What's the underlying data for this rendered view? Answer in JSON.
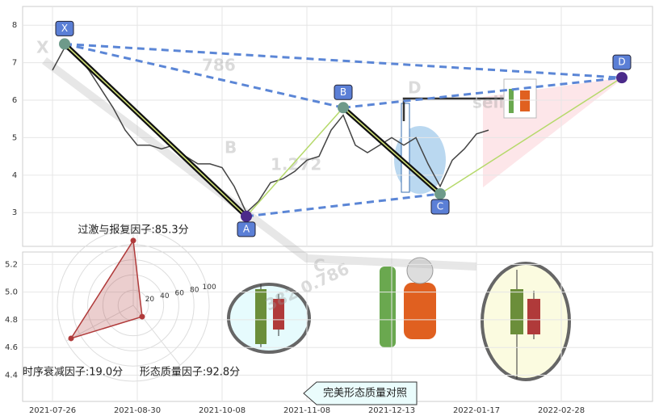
{
  "chart_data": [
    {
      "type": "line",
      "categories": [
        "2021-07-26",
        null,
        null,
        null,
        null,
        null,
        null,
        "2021-08-30",
        null,
        null,
        null,
        null,
        null,
        null,
        "2021-10-08",
        null,
        null,
        null,
        null,
        null,
        null,
        "2021-11-08",
        null,
        null,
        null,
        null,
        null,
        null,
        "2021-12-13",
        null,
        null,
        null,
        null,
        null,
        null,
        "2022-01-17",
        null,
        null,
        null,
        null,
        null,
        null,
        "2022-02-28",
        null,
        null,
        null,
        null,
        null,
        null,
        null
      ],
      "values": [
        6.8,
        7.4,
        7.2,
        6.8,
        6.3,
        5.8,
        5.2,
        4.8,
        4.8,
        4.7,
        4.8,
        4.5,
        4.3,
        4.3,
        4.2,
        3.7,
        3.0,
        3.3,
        3.8,
        3.9,
        4.1,
        4.4,
        4.5,
        5.2,
        5.6,
        4.8,
        4.6,
        4.8,
        5.0,
        4.8,
        5.0,
        4.3,
        3.7,
        4.4,
        4.7,
        5.1,
        5.2,
        null,
        null,
        null,
        null,
        null,
        null,
        null,
        null,
        null,
        null,
        null,
        null,
        null
      ],
      "color": "#444444",
      "ylim": [
        2.1,
        8.5
      ],
      "yticks": [
        3,
        4,
        5,
        6,
        7,
        8
      ],
      "grid": true,
      "pattern": {
        "labels": [
          "X",
          "A",
          "B",
          "C",
          "D"
        ],
        "x": [
          1,
          16,
          24,
          32,
          47
        ],
        "values": [
          7.5,
          2.9,
          5.8,
          3.5,
          6.6
        ]
      },
      "watermarks": [
        "X",
        "786",
        "B",
        "1.272",
        "D",
        "sell",
        "C",
        "382 0.786"
      ]
    },
    {
      "type": "candlestick",
      "ylim": [
        4.21,
        5.29
      ],
      "yticks": [
        4.4,
        4.6,
        4.8,
        {
          "value": 5.0,
          "label": "5.0"
        },
        5.2
      ],
      "grid": true
    },
    {
      "type": "radar",
      "values": [
        85.3,
        19.0,
        92.8
      ],
      "value_labels": [
        "过激与报复因子:85.3分",
        "时序衰减因子:19.0分",
        "形态质量因子:92.8分"
      ],
      "rlim": [
        0,
        100
      ],
      "rticks": [
        20,
        40,
        60,
        80,
        100
      ],
      "color": "#b03a3a"
    }
  ],
  "button_label": "完美形态质量对照"
}
